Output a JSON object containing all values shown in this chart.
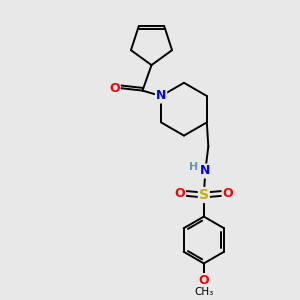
{
  "background_color": "#e8e8e8",
  "bond_color": "#000000",
  "atom_colors": {
    "N": "#0000ff",
    "O": "#ff0000",
    "S": "#ccaa00",
    "C": "#000000",
    "H": "#6699aa"
  },
  "figsize": [
    3.0,
    3.0
  ],
  "dpi": 100,
  "xlim": [
    0,
    10
  ],
  "ylim": [
    0,
    10
  ]
}
